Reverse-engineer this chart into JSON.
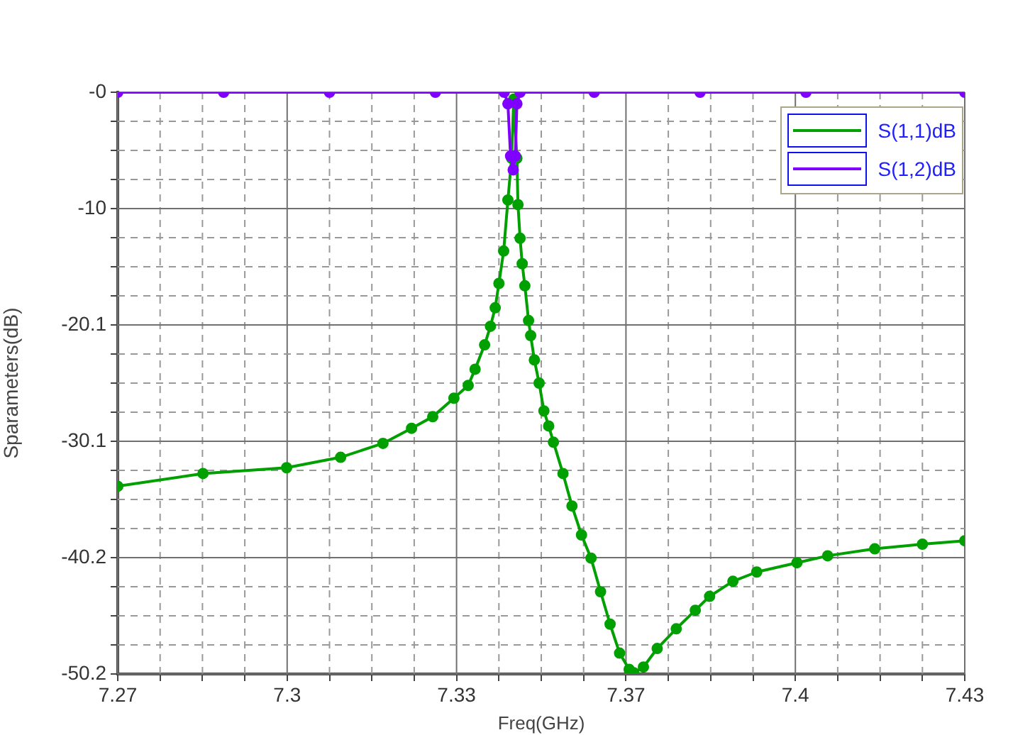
{
  "chart_data": {
    "type": "line",
    "xlabel": "Freq(GHz)",
    "ylabel": "Sparameters(dB)",
    "xlim": [
      7.27,
      7.43
    ],
    "xticks": [
      {
        "value": 7.27,
        "label": "7.27"
      },
      {
        "value": 7.278,
        "label": null
      },
      {
        "value": 7.286,
        "label": null
      },
      {
        "value": 7.294,
        "label": null
      },
      {
        "value": 7.302,
        "label": "7.3"
      },
      {
        "value": 7.31,
        "label": null
      },
      {
        "value": 7.318,
        "label": null
      },
      {
        "value": 7.326,
        "label": null
      },
      {
        "value": 7.334,
        "label": "7.33"
      },
      {
        "value": 7.342,
        "label": null
      },
      {
        "value": 7.35,
        "label": null
      },
      {
        "value": 7.358,
        "label": null
      },
      {
        "value": 7.366,
        "label": "7.37"
      },
      {
        "value": 7.374,
        "label": null
      },
      {
        "value": 7.382,
        "label": null
      },
      {
        "value": 7.39,
        "label": null
      },
      {
        "value": 7.398,
        "label": "7.4"
      },
      {
        "value": 7.406,
        "label": null
      },
      {
        "value": 7.414,
        "label": null
      },
      {
        "value": 7.422,
        "label": null
      },
      {
        "value": 7.43,
        "label": "7.43"
      }
    ],
    "ylim": [
      -50.2,
      0
    ],
    "yticks": [
      {
        "value": 0,
        "label": "-0"
      },
      {
        "value": -2.51,
        "label": null
      },
      {
        "value": -5.02,
        "label": null
      },
      {
        "value": -7.53,
        "label": null
      },
      {
        "value": -10.04,
        "label": "-10"
      },
      {
        "value": -12.55,
        "label": null
      },
      {
        "value": -15.06,
        "label": null
      },
      {
        "value": -17.57,
        "label": null
      },
      {
        "value": -20.08,
        "label": "-20.1"
      },
      {
        "value": -22.59,
        "label": null
      },
      {
        "value": -25.1,
        "label": null
      },
      {
        "value": -27.61,
        "label": null
      },
      {
        "value": -30.12,
        "label": "-30.1"
      },
      {
        "value": -32.63,
        "label": null
      },
      {
        "value": -35.14,
        "label": null
      },
      {
        "value": -37.65,
        "label": null
      },
      {
        "value": -40.16,
        "label": "-40.2"
      },
      {
        "value": -42.67,
        "label": null
      },
      {
        "value": -45.18,
        "label": null
      },
      {
        "value": -47.69,
        "label": null
      },
      {
        "value": -50.2,
        "label": "-50.2"
      }
    ],
    "grid": true,
    "legend": "top right",
    "marker": "circle",
    "line_style": "solid",
    "series": [
      {
        "name": "S(1,1)dB",
        "color": "#00a000",
        "x": [
          7.27,
          7.2861,
          7.3019,
          7.3121,
          7.3201,
          7.3255,
          7.3295,
          7.3335,
          7.3362,
          7.3375,
          7.3393,
          7.3404,
          7.3413,
          7.342,
          7.3429,
          7.3437,
          7.3444,
          7.3448,
          7.3454,
          7.3456,
          7.346,
          7.3464,
          7.3469,
          7.3476,
          7.348,
          7.3487,
          7.3496,
          7.3505,
          7.3514,
          7.3523,
          7.3541,
          7.3558,
          7.3576,
          7.3594,
          7.3612,
          7.363,
          7.3648,
          7.3666,
          7.3675,
          7.3693,
          7.3719,
          7.3755,
          7.3791,
          7.3818,
          7.3862,
          7.3907,
          7.3983,
          7.4041,
          7.413,
          7.422,
          7.43
        ],
        "values": [
          -34.0,
          -32.9,
          -32.4,
          -31.5,
          -30.3,
          -29.0,
          -28.0,
          -26.4,
          -25.3,
          -23.9,
          -21.8,
          -20.2,
          -18.6,
          -16.5,
          -13.7,
          -9.3,
          -5.7,
          -0.6,
          -5.7,
          -9.7,
          -12.6,
          -14.8,
          -16.7,
          -19.7,
          -21.0,
          -23.1,
          -25.1,
          -27.5,
          -28.8,
          -30.2,
          -32.9,
          -35.7,
          -38.2,
          -40.2,
          -43.1,
          -45.9,
          -48.4,
          -49.8,
          -50.1,
          -49.6,
          -48.0,
          -46.3,
          -44.7,
          -43.5,
          -42.2,
          -41.4,
          -40.6,
          -40.0,
          -39.4,
          -39.0,
          -38.7
        ]
      },
      {
        "name": "S(1,2)dB",
        "color": "#8000ff",
        "x": [
          7.27,
          7.29,
          7.31,
          7.33,
          7.343,
          7.3437,
          7.3442,
          7.3447,
          7.3451,
          7.3454,
          7.346,
          7.36,
          7.38,
          7.4,
          7.43
        ],
        "values": [
          0,
          0,
          0,
          0,
          0,
          -1.0,
          -5.5,
          -6.7,
          -5.5,
          -1.0,
          0,
          0,
          0,
          0,
          0
        ]
      }
    ]
  }
}
